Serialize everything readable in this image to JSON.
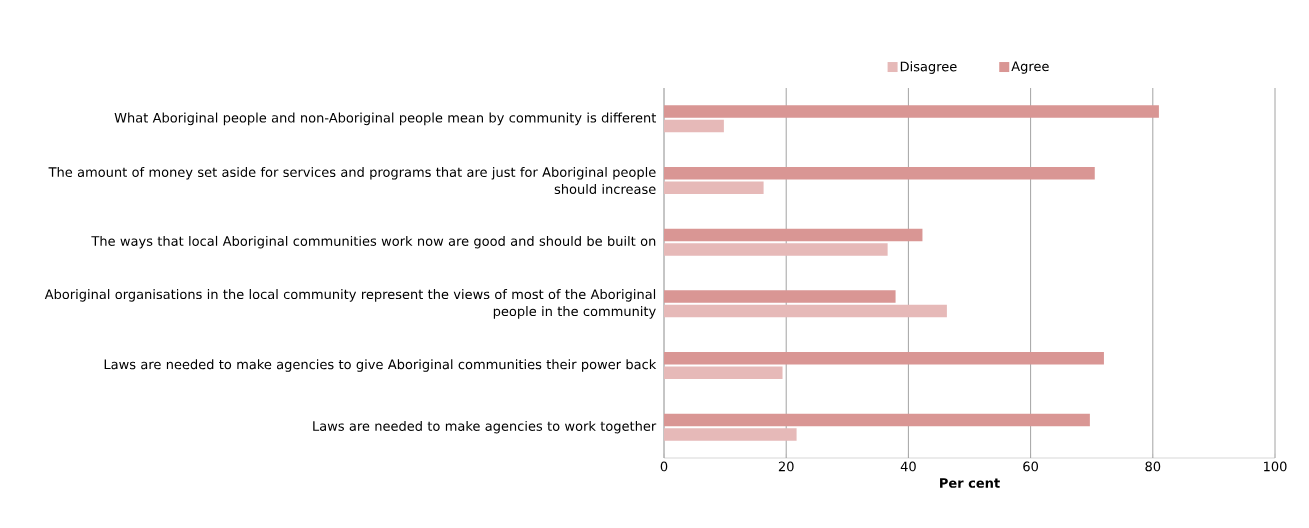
{
  "chart_data": {
    "type": "bar",
    "orientation": "horizontal",
    "xlabel": "Per cent",
    "categories": [
      "What Aboriginal people and non-Aboriginal people mean by community is different",
      "The amount of money set aside for services and programs that are just for Aboriginal people should increase",
      "The ways that local Aboriginal communities work now are good and should be built on",
      "Aboriginal organisations in the local community represent the views of most of the Aboriginal people in the community",
      "Laws are needed to make agencies to give Aboriginal communities their power back",
      "Laws are needed to make agencies to work together"
    ],
    "series": [
      {
        "name": "Disagree",
        "color": "#e6b9b8",
        "values": [
          9.8,
          16.3,
          36.6,
          46.3,
          19.4,
          21.7
        ]
      },
      {
        "name": "Agree",
        "color": "#d99694",
        "values": [
          81.0,
          70.5,
          42.3,
          37.9,
          72.0,
          69.7
        ]
      }
    ],
    "xlim": [
      0,
      100
    ],
    "xticks": [
      0,
      20,
      40,
      60,
      80,
      100
    ],
    "grid": "x",
    "legend": "top"
  }
}
